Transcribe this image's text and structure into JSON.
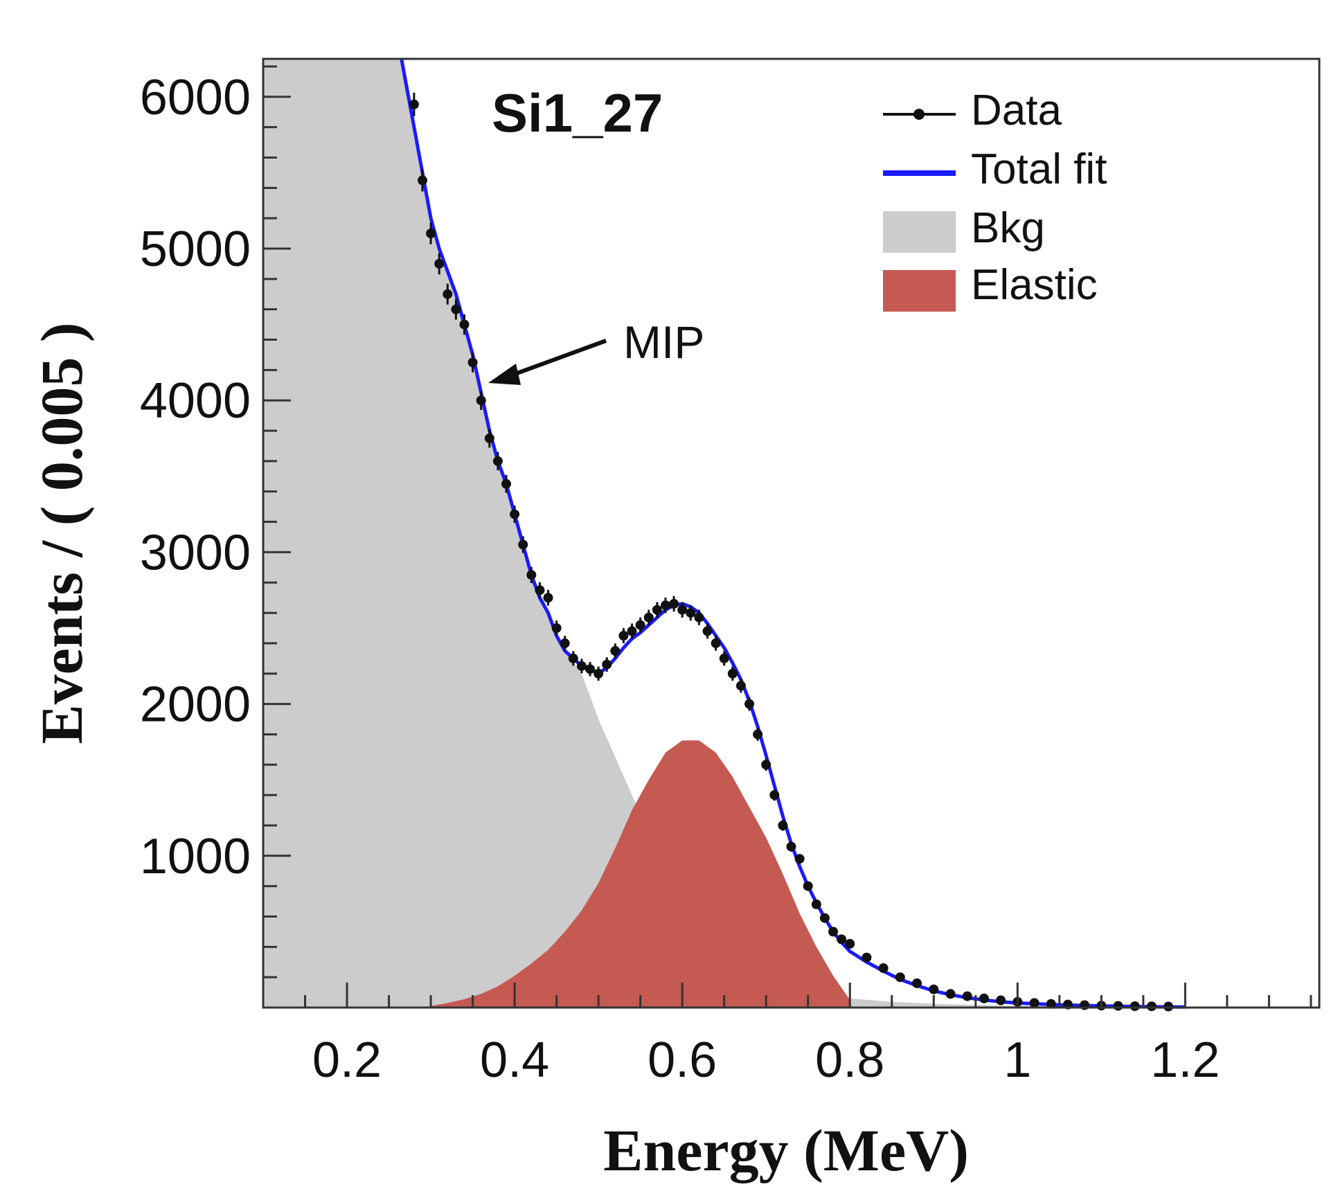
{
  "chart_data": {
    "type": "line",
    "title": "Si1_27",
    "xlabel": "Energy (MeV)",
    "ylabel": "Events / ( 0.005 )",
    "xlim": [
      0.1,
      1.36
    ],
    "ylim": [
      0,
      6250
    ],
    "x_ticks": [
      0.2,
      0.4,
      0.6,
      0.8,
      1,
      1.2
    ],
    "x_tick_labels": [
      "0.2",
      "0.4",
      "0.6",
      "0.8",
      "1",
      "1.2"
    ],
    "y_ticks": [
      1000,
      2000,
      3000,
      4000,
      5000,
      6000
    ],
    "y_tick_labels": [
      "1000",
      "2000",
      "3000",
      "4000",
      "5000",
      "6000"
    ],
    "grid": false,
    "legend_position": "top-right",
    "annotation": {
      "text": "MIP",
      "x": 0.36,
      "y": 4150
    },
    "series": [
      {
        "name": "Data",
        "style": "points",
        "color": "#111111",
        "x": [
          0.28,
          0.29,
          0.3,
          0.31,
          0.32,
          0.33,
          0.34,
          0.35,
          0.36,
          0.37,
          0.38,
          0.39,
          0.4,
          0.41,
          0.42,
          0.43,
          0.44,
          0.45,
          0.46,
          0.47,
          0.48,
          0.49,
          0.5,
          0.51,
          0.52,
          0.53,
          0.54,
          0.55,
          0.56,
          0.57,
          0.58,
          0.59,
          0.6,
          0.61,
          0.62,
          0.63,
          0.64,
          0.65,
          0.66,
          0.67,
          0.68,
          0.69,
          0.7,
          0.71,
          0.72,
          0.73,
          0.74,
          0.75,
          0.76,
          0.77,
          0.78,
          0.79,
          0.8,
          0.82,
          0.84,
          0.86,
          0.88,
          0.9,
          0.92,
          0.94,
          0.96,
          0.98,
          1.0,
          1.02,
          1.04,
          1.06,
          1.08,
          1.1,
          1.12,
          1.14,
          1.16,
          1.18
        ],
        "y": [
          5950,
          5450,
          5100,
          4900,
          4700,
          4600,
          4500,
          4250,
          4000,
          3750,
          3600,
          3450,
          3250,
          3050,
          2850,
          2750,
          2700,
          2500,
          2400,
          2300,
          2250,
          2230,
          2200,
          2260,
          2350,
          2450,
          2480,
          2520,
          2570,
          2620,
          2650,
          2660,
          2620,
          2600,
          2570,
          2480,
          2400,
          2300,
          2200,
          2120,
          2000,
          1800,
          1600,
          1400,
          1200,
          1060,
          980,
          800,
          680,
          590,
          500,
          450,
          420,
          330,
          260,
          200,
          160,
          120,
          90,
          75,
          60,
          48,
          38,
          30,
          24,
          20,
          16,
          13,
          11,
          9,
          8,
          7
        ]
      },
      {
        "name": "Total fit",
        "style": "line",
        "color": "#1a1aff",
        "x": [
          0.265,
          0.28,
          0.29,
          0.3,
          0.31,
          0.32,
          0.33,
          0.34,
          0.35,
          0.36,
          0.37,
          0.38,
          0.39,
          0.4,
          0.41,
          0.42,
          0.43,
          0.44,
          0.45,
          0.46,
          0.47,
          0.48,
          0.49,
          0.5,
          0.51,
          0.52,
          0.53,
          0.54,
          0.55,
          0.56,
          0.57,
          0.58,
          0.59,
          0.6,
          0.61,
          0.62,
          0.63,
          0.64,
          0.65,
          0.66,
          0.67,
          0.68,
          0.69,
          0.7,
          0.71,
          0.72,
          0.73,
          0.74,
          0.75,
          0.76,
          0.77,
          0.78,
          0.79,
          0.8,
          0.82,
          0.84,
          0.86,
          0.88,
          0.9,
          0.92,
          0.94,
          0.96,
          0.98,
          1.0,
          1.05,
          1.1,
          1.15,
          1.2
        ],
        "y": [
          6250,
          5800,
          5500,
          5200,
          5000,
          4850,
          4700,
          4500,
          4300,
          4050,
          3800,
          3600,
          3450,
          3250,
          3050,
          2850,
          2700,
          2600,
          2450,
          2350,
          2300,
          2250,
          2230,
          2200,
          2240,
          2300,
          2370,
          2430,
          2470,
          2520,
          2570,
          2620,
          2650,
          2660,
          2640,
          2600,
          2530,
          2450,
          2370,
          2270,
          2160,
          2020,
          1850,
          1660,
          1460,
          1260,
          1080,
          930,
          800,
          690,
          590,
          500,
          430,
          370,
          300,
          240,
          185,
          145,
          110,
          85,
          65,
          50,
          38,
          30,
          18,
          11,
          6,
          3
        ]
      },
      {
        "name": "Bkg",
        "style": "area",
        "color": "#cccccc",
        "x": [
          0.1,
          0.265,
          0.28,
          0.3,
          0.32,
          0.34,
          0.36,
          0.38,
          0.4,
          0.42,
          0.44,
          0.46,
          0.48,
          0.5,
          0.52,
          0.54,
          0.56,
          0.58,
          0.6,
          0.62,
          0.64,
          0.66,
          0.68,
          0.7,
          0.72,
          0.74,
          0.76,
          0.78,
          0.8,
          0.85,
          0.9,
          0.95,
          1.0,
          1.05,
          1.1,
          1.15,
          1.2,
          1.25,
          1.3,
          1.36
        ],
        "y": [
          6250,
          6250,
          5800,
          5200,
          4850,
          4500,
          4050,
          3600,
          3250,
          2850,
          2600,
          2350,
          2200,
          1900,
          1650,
          1400,
          1150,
          920,
          720,
          560,
          430,
          330,
          250,
          195,
          150,
          118,
          92,
          74,
          60,
          38,
          25,
          17,
          12,
          8,
          6,
          4,
          3,
          2,
          1.5,
          1
        ]
      },
      {
        "name": "Elastic",
        "style": "area",
        "color": "#c45a52",
        "x": [
          0.3,
          0.32,
          0.34,
          0.36,
          0.38,
          0.4,
          0.42,
          0.44,
          0.46,
          0.48,
          0.5,
          0.52,
          0.54,
          0.56,
          0.58,
          0.6,
          0.62,
          0.64,
          0.66,
          0.68,
          0.7,
          0.72,
          0.74,
          0.76,
          0.78,
          0.8
        ],
        "y": [
          10,
          30,
          55,
          90,
          140,
          210,
          290,
          380,
          500,
          640,
          820,
          1050,
          1300,
          1500,
          1680,
          1760,
          1760,
          1680,
          1520,
          1320,
          1120,
          880,
          620,
          400,
          210,
          50
        ]
      }
    ]
  }
}
